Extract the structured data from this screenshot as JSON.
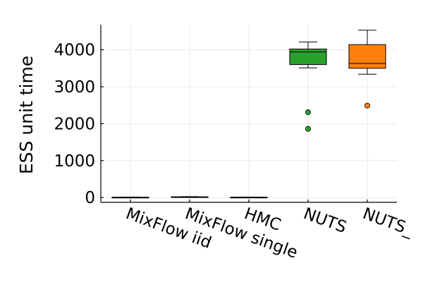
{
  "chart_data": {
    "type": "box",
    "categories": [
      "MixFlow iid",
      "MixFlow single",
      "HMC",
      "NUTS",
      "NUTS_"
    ],
    "ylabel": "ESS unit time",
    "xlabel": "",
    "title": "",
    "ylim": [
      -130,
      4680
    ],
    "yticks": [
      0,
      1000,
      2000,
      3000,
      4000
    ],
    "grid": true,
    "legend": "none",
    "series": [
      {
        "category": "MixFlow iid",
        "min": 0,
        "q1": 2,
        "median": 5,
        "q3": 8,
        "max": 12,
        "outliers": [],
        "color": "#3b6fb6"
      },
      {
        "category": "MixFlow single",
        "min": 5,
        "q1": 10,
        "median": 15,
        "q3": 20,
        "max": 25,
        "outliers": [],
        "color": "#e08b3a"
      },
      {
        "category": "HMC",
        "min": 0,
        "q1": 3,
        "median": 6,
        "q3": 9,
        "max": 14,
        "outliers": [],
        "color": "#3ba03b"
      },
      {
        "category": "NUTS",
        "min": 3510,
        "q1": 3600,
        "median": 3940,
        "q3": 4020,
        "max": 4210,
        "outliers": [
          2310,
          1860
        ],
        "color": "#2ca02c"
      },
      {
        "category": "NUTS_",
        "min": 3340,
        "q1": 3500,
        "median": 3630,
        "q3": 4140,
        "max": 4530,
        "outliers": [
          2490
        ],
        "color": "#ff7f0e"
      }
    ]
  }
}
